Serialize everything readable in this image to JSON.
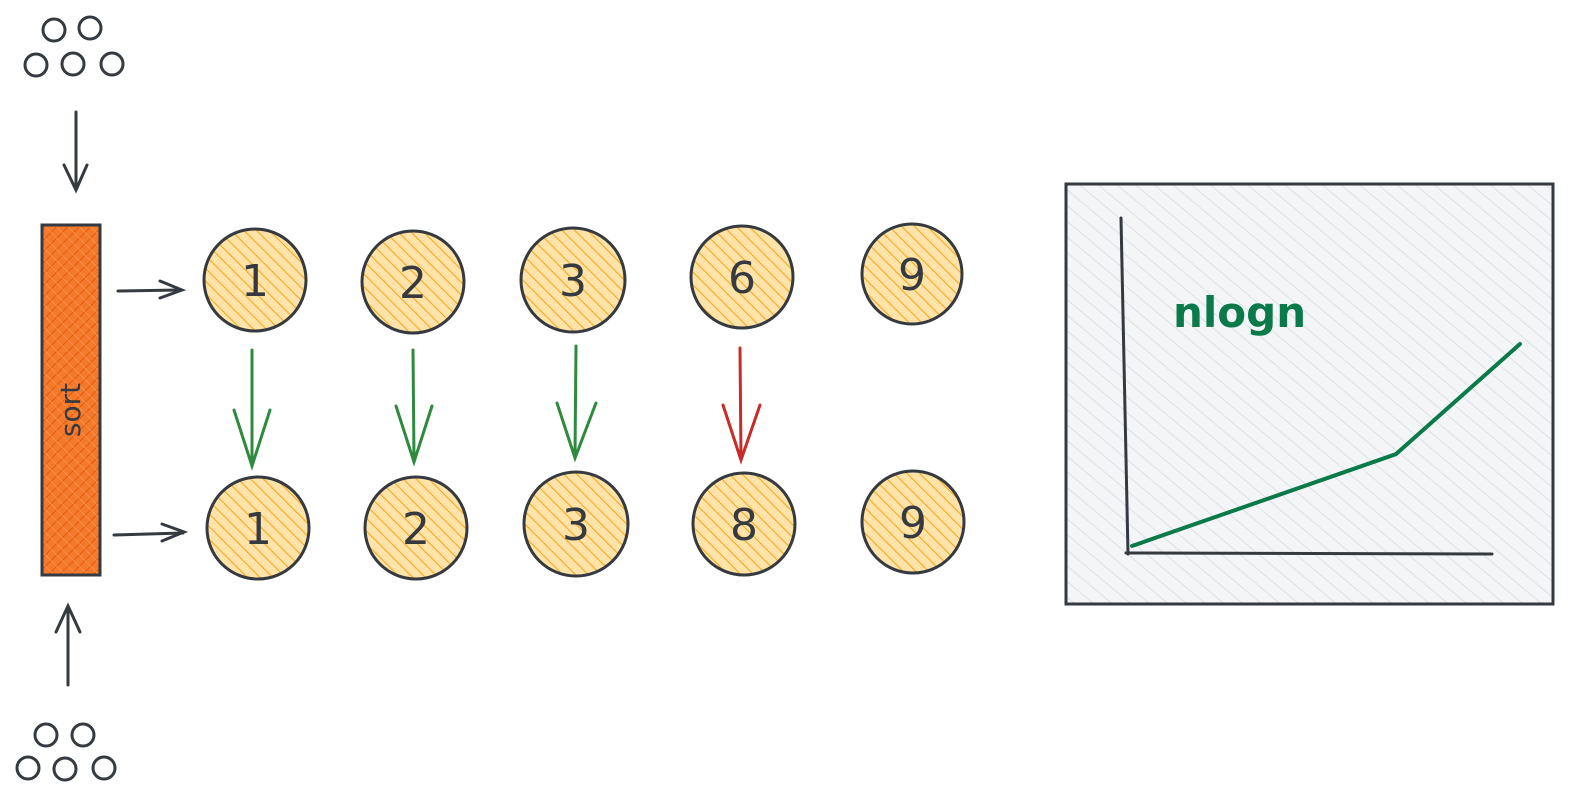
{
  "sort_bar": {
    "label": "sort",
    "fill": "#f27a2c",
    "stroke": "#343a40"
  },
  "rows": {
    "top": [
      "1",
      "2",
      "3",
      "6",
      "9"
    ],
    "bottom": [
      "1",
      "2",
      "3",
      "8",
      "9"
    ]
  },
  "comparisons": [
    {
      "status": "match",
      "color": "#2f8a3e"
    },
    {
      "status": "match",
      "color": "#2f8a3e"
    },
    {
      "status": "match",
      "color": "#2f8a3e"
    },
    {
      "status": "mismatch",
      "color": "#c92a2a"
    }
  ],
  "node_style": {
    "fill": "#ffd27a",
    "hatch": "#f6a821",
    "stroke": "#343a40"
  },
  "chart": {
    "title": "nlogn",
    "line_color": "#0b7a4a",
    "panel_fill": "#f1f3f5",
    "hatch_color": "#d6d9dc"
  },
  "chart_data": {
    "type": "line",
    "title": "nlogn",
    "xlabel": "",
    "ylabel": "",
    "series": [
      {
        "name": "nlogn",
        "x": [
          0,
          0.68,
          1.0
        ],
        "y": [
          0,
          0.3,
          0.66
        ]
      }
    ],
    "xlim": [
      0,
      1
    ],
    "ylim": [
      0,
      1
    ],
    "grid": false
  }
}
